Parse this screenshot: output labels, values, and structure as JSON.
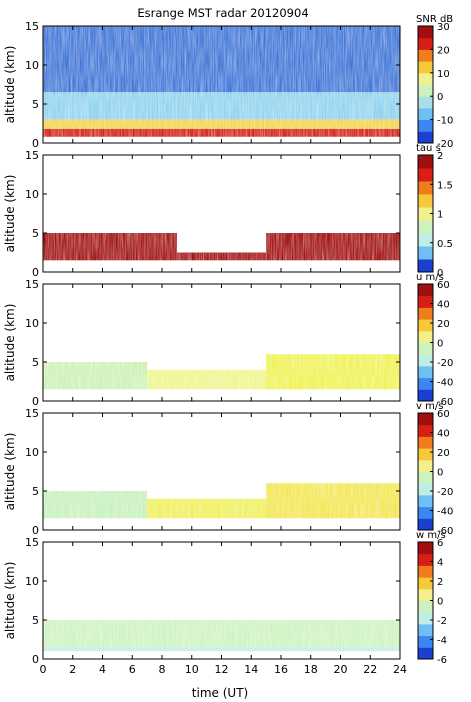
{
  "title": "Esrange MST radar 20120904",
  "xlabel": "time (UT)",
  "x_ticks": [
    "0",
    "2",
    "4",
    "6",
    "8",
    "10",
    "12",
    "14",
    "16",
    "18",
    "20",
    "22",
    "24"
  ],
  "chart_data": [
    {
      "type": "heatmap",
      "ylabel": "altitude (km)",
      "xlim": [
        0,
        24
      ],
      "ylim": [
        0,
        15
      ],
      "y_ticks": [
        "0",
        "5",
        "10",
        "15"
      ],
      "colorbar": {
        "label": "SNR dB",
        "range": [
          -20,
          30
        ],
        "ticks": [
          "30",
          "20",
          "10",
          "0",
          "-10",
          "-20"
        ],
        "palette": [
          "#1b3fd0",
          "#3c86f2",
          "#6fbff2",
          "#a9e0e8",
          "#cdf2c0",
          "#f2f08a",
          "#f7c83a",
          "#ef7d1e",
          "#d81f16",
          "#a01010"
        ]
      },
      "bands": [
        {
          "x0": 0,
          "x1": 24,
          "y0": 6.5,
          "y1": 15,
          "color": "#3f74d6",
          "level": "low"
        },
        {
          "x0": 0,
          "x1": 24,
          "y0": 3.0,
          "y1": 6.5,
          "color": "#8fd2ee",
          "level": "mid"
        },
        {
          "x0": 0,
          "x1": 24,
          "y0": 1.5,
          "y1": 3.0,
          "color": "#f2d24a",
          "level": "high"
        },
        {
          "x0": 0,
          "x1": 24,
          "y0": 0.8,
          "y1": 1.8,
          "color": "#d21d16",
          "level": "max"
        }
      ]
    },
    {
      "type": "heatmap",
      "ylabel": "altitude (km)",
      "xlim": [
        0,
        24
      ],
      "ylim": [
        0,
        15
      ],
      "y_ticks": [
        "0",
        "5",
        "10",
        "15"
      ],
      "colorbar": {
        "label": "tau s",
        "range": [
          0,
          2
        ],
        "ticks": [
          "2",
          "1.5",
          "1",
          "0.5",
          "0"
        ],
        "palette": [
          "#1b3fd0",
          "#6fbff2",
          "#bfeee6",
          "#cdf2c0",
          "#f2f08a",
          "#f7c83a",
          "#ef7d1e",
          "#d81f16",
          "#a01010"
        ]
      },
      "bands": [
        {
          "x0": 0,
          "x1": 9,
          "y0": 1.5,
          "y1": 5.0,
          "color": "#a01010",
          "level": "max"
        },
        {
          "x0": 9,
          "x1": 15,
          "y0": 1.5,
          "y1": 2.5,
          "color": "#a01010",
          "level": "max"
        },
        {
          "x0": 15,
          "x1": 24,
          "y0": 1.5,
          "y1": 5.0,
          "color": "#a01010",
          "level": "max"
        }
      ]
    },
    {
      "type": "heatmap",
      "ylabel": "altitude (km)",
      "xlim": [
        0,
        24
      ],
      "ylim": [
        0,
        15
      ],
      "y_ticks": [
        "0",
        "5",
        "10",
        "15"
      ],
      "colorbar": {
        "label": "u m/s",
        "range": [
          -60,
          60
        ],
        "ticks": [
          "60",
          "40",
          "20",
          "0",
          "-20",
          "-40",
          "-60"
        ],
        "palette": [
          "#1b3fd0",
          "#3c86f2",
          "#6fbff2",
          "#bfeee6",
          "#cdf2c0",
          "#f2f08a",
          "#f7c83a",
          "#ef7d1e",
          "#d81f16",
          "#a01010"
        ]
      },
      "bands": [
        {
          "x0": 0,
          "x1": 7,
          "y0": 1.5,
          "y1": 5.0,
          "color": "#cdf0b4",
          "level": "mid"
        },
        {
          "x0": 7,
          "x1": 15,
          "y0": 1.5,
          "y1": 4.0,
          "color": "#eef58a",
          "level": "high"
        },
        {
          "x0": 15,
          "x1": 24,
          "y0": 1.5,
          "y1": 6.0,
          "color": "#eef250",
          "level": "high"
        }
      ]
    },
    {
      "type": "heatmap",
      "ylabel": "altitude (km)",
      "xlim": [
        0,
        24
      ],
      "ylim": [
        0,
        15
      ],
      "y_ticks": [
        "0",
        "5",
        "10",
        "15"
      ],
      "colorbar": {
        "label": "v m/s",
        "range": [
          -60,
          60
        ],
        "ticks": [
          "60",
          "40",
          "20",
          "0",
          "-20",
          "-40",
          "-60"
        ],
        "palette": [
          "#1b3fd0",
          "#3c86f2",
          "#6fbff2",
          "#bfeee6",
          "#cdf2c0",
          "#f2f08a",
          "#f7c83a",
          "#ef7d1e",
          "#d81f16",
          "#a01010"
        ]
      },
      "bands": [
        {
          "x0": 0,
          "x1": 7,
          "y0": 1.5,
          "y1": 5.0,
          "color": "#c6f0bc",
          "level": "mid"
        },
        {
          "x0": 7,
          "x1": 15,
          "y0": 1.5,
          "y1": 4.0,
          "color": "#eef05a",
          "level": "high"
        },
        {
          "x0": 15,
          "x1": 24,
          "y0": 1.5,
          "y1": 6.0,
          "color": "#f2e650",
          "level": "high"
        }
      ]
    },
    {
      "type": "heatmap",
      "ylabel": "altitude (km)",
      "xlim": [
        0,
        24
      ],
      "ylim": [
        0,
        15
      ],
      "y_ticks": [
        "0",
        "5",
        "10",
        "15"
      ],
      "colorbar": {
        "label": "w m/s",
        "range": [
          -6,
          6
        ],
        "ticks": [
          "6",
          "4",
          "2",
          "0",
          "-2",
          "-4",
          "-6"
        ],
        "palette": [
          "#1b3fd0",
          "#3c86f2",
          "#6fbff2",
          "#bfeee6",
          "#cdf2c0",
          "#f2f08a",
          "#f7c83a",
          "#ef7d1e",
          "#d81f16",
          "#a01010"
        ]
      },
      "bands": [
        {
          "x0": 0,
          "x1": 24,
          "y0": 1.5,
          "y1": 5.0,
          "color": "#cdf2c0",
          "level": "mid"
        },
        {
          "x0": 0,
          "x1": 24,
          "y0": 1.0,
          "y1": 1.5,
          "color": "#bfeee6",
          "level": "mid"
        }
      ]
    }
  ]
}
